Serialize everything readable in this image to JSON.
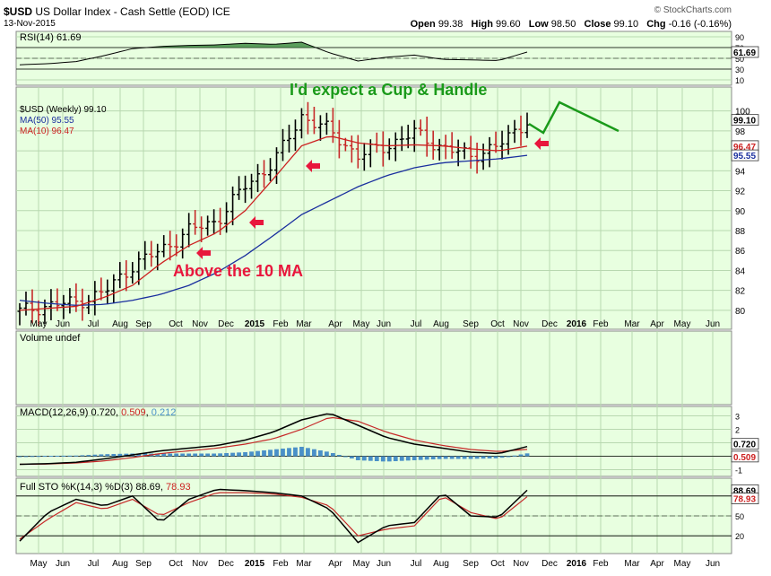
{
  "header": {
    "symbol": "$USD",
    "name": "US Dollar Index - Cash Settle (EOD)",
    "exchange": "ICE",
    "date": "13-Nov-2015",
    "watermark": "© StockCharts.com",
    "open_label": "Open",
    "open": "99.38",
    "high_label": "High",
    "high": "99.60",
    "low_label": "Low",
    "low": "98.50",
    "close_label": "Close",
    "close": "99.10",
    "chg_label": "Chg",
    "chg": "-0.16 (-0.16%)"
  },
  "colors": {
    "panel_bg": "#e8ffe0",
    "ma50": "#1a2f9e",
    "ma10": "#cc2020",
    "annotation_red": "#e8163c",
    "annotation_green": "#1a9a1a",
    "down_bar": "#c62828",
    "up_bar": "#000000",
    "rsi_fill": "#2e7d32",
    "histogram": "#4a90c8"
  },
  "x_axis": {
    "labels": [
      "May",
      "Jun",
      "Jul",
      "Aug",
      "Sep",
      "Oct",
      "Nov",
      "Dec",
      "2015",
      "Feb",
      "Mar",
      "Apr",
      "May",
      "Jun",
      "Jul",
      "Aug",
      "Sep",
      "Oct",
      "Nov",
      "Dec",
      "2016",
      "Feb",
      "Mar",
      "Apr",
      "May",
      "Jun"
    ]
  },
  "rsi": {
    "legend": "RSI(14) 61.69",
    "ticks": [
      "90",
      "70",
      "50",
      "30",
      "10"
    ],
    "value_tag": "61.69"
  },
  "price": {
    "legend_symbol": "$USD (Weekly) 99.10",
    "legend_ma50": "MA(50) 95.55",
    "legend_ma10": "MA(10) 96.47",
    "ticks": [
      "100",
      "98",
      "96",
      "94",
      "92",
      "90",
      "88",
      "86",
      "84",
      "82",
      "80"
    ],
    "tag_close": "99.10",
    "tag_ma10": "96.47",
    "tag_ma50": "95.55",
    "annotation_cup": "I'd expect a Cup & Handle",
    "annotation_ma": "Above the 10 MA"
  },
  "volume": {
    "legend": "Volume undef"
  },
  "macd": {
    "legend_prefix": "MACD(12,26,9)",
    "macd_value": "0.720",
    "signal_value": "0.509",
    "hist_value": "0.212",
    "ticks": [
      "3",
      "2",
      "1",
      "0",
      "-1"
    ],
    "tag_macd": "0.720",
    "tag_signal": "0.509"
  },
  "sto": {
    "legend_prefix": "Full STO %K(14,3) %D(3)",
    "k_value": "88.69",
    "d_value": "78.93",
    "ticks": [
      "80",
      "50",
      "20"
    ],
    "tag_k": "88.69",
    "tag_d": "78.93"
  },
  "chart_data": [
    {
      "type": "line",
      "title": "RSI(14)",
      "x": [
        "2014-05",
        "2014-06",
        "2014-07",
        "2014-08",
        "2014-09",
        "2014-10",
        "2014-11",
        "2014-12",
        "2015-01",
        "2015-02",
        "2015-03",
        "2015-04",
        "2015-05",
        "2015-06",
        "2015-07",
        "2015-08",
        "2015-09",
        "2015-10",
        "2015-11"
      ],
      "series": [
        {
          "name": "RSI(14)",
          "values": [
            38,
            40,
            44,
            55,
            68,
            72,
            74,
            75,
            78,
            76,
            80,
            60,
            45,
            52,
            56,
            48,
            47,
            46,
            61.69
          ]
        }
      ],
      "ylim": [
        0,
        100
      ]
    },
    {
      "type": "bar",
      "title": "$USD (Weekly)",
      "x": [
        "2014-05",
        "2014-06",
        "2014-07",
        "2014-08",
        "2014-09",
        "2014-10",
        "2014-11",
        "2014-12",
        "2015-01",
        "2015-02",
        "2015-03",
        "2015-04",
        "2015-05",
        "2015-06",
        "2015-07",
        "2015-08",
        "2015-09",
        "2015-10",
        "2015-11"
      ],
      "series": [
        {
          "name": "$USD",
          "values": [
            79.9,
            80.5,
            80.8,
            81.8,
            84.5,
            86.0,
            88.0,
            89.0,
            92.5,
            94.8,
            99.5,
            98.0,
            95.5,
            96.5,
            97.8,
            96.3,
            95.5,
            96.5,
            99.1
          ]
        },
        {
          "name": "MA(50)",
          "values": [
            81.0,
            80.7,
            80.5,
            80.6,
            81.0,
            81.6,
            82.5,
            83.8,
            85.5,
            87.5,
            89.6,
            91.0,
            92.4,
            93.5,
            94.3,
            94.8,
            95.0,
            95.2,
            95.55
          ]
        },
        {
          "name": "MA(10)",
          "values": [
            80.0,
            80.2,
            80.4,
            81.3,
            82.5,
            84.7,
            86.5,
            87.8,
            90.0,
            93.2,
            96.5,
            97.5,
            96.8,
            96.5,
            96.6,
            96.5,
            96.2,
            96.0,
            96.47
          ]
        }
      ],
      "ylim": [
        79,
        101
      ]
    },
    {
      "type": "line",
      "title": "MACD(12,26,9)",
      "x": [
        "2014-05",
        "2014-06",
        "2014-07",
        "2014-08",
        "2014-09",
        "2014-10",
        "2014-11",
        "2014-12",
        "2015-01",
        "2015-02",
        "2015-03",
        "2015-04",
        "2015-05",
        "2015-06",
        "2015-07",
        "2015-08",
        "2015-09",
        "2015-10",
        "2015-11"
      ],
      "series": [
        {
          "name": "MACD",
          "values": [
            -0.6,
            -0.55,
            -0.45,
            -0.2,
            0.1,
            0.4,
            0.6,
            0.8,
            1.2,
            1.8,
            2.7,
            3.2,
            2.3,
            1.4,
            0.9,
            0.6,
            0.3,
            0.2,
            0.72
          ]
        },
        {
          "name": "Signal",
          "values": [
            -0.6,
            -0.58,
            -0.5,
            -0.35,
            -0.1,
            0.2,
            0.4,
            0.6,
            0.9,
            1.3,
            2.0,
            2.9,
            2.6,
            1.8,
            1.2,
            0.8,
            0.5,
            0.35,
            0.509
          ]
        },
        {
          "name": "Histogram",
          "values": [
            0,
            0.03,
            0.05,
            0.15,
            0.2,
            0.2,
            0.2,
            0.2,
            0.3,
            0.5,
            0.7,
            0.3,
            -0.3,
            -0.4,
            -0.3,
            -0.2,
            -0.2,
            -0.15,
            0.212
          ]
        }
      ],
      "ylim": [
        -1.5,
        3.5
      ]
    },
    {
      "type": "line",
      "title": "Full STO %K(14,3) %D(3)",
      "x": [
        "2014-05",
        "2014-06",
        "2014-07",
        "2014-08",
        "2014-09",
        "2014-10",
        "2014-11",
        "2014-12",
        "2015-01",
        "2015-02",
        "2015-03",
        "2015-04",
        "2015-05",
        "2015-06",
        "2015-07",
        "2015-08",
        "2015-09",
        "2015-10",
        "2015-11"
      ],
      "series": [
        {
          "name": "%K",
          "values": [
            12,
            55,
            75,
            65,
            80,
            40,
            75,
            90,
            88,
            85,
            80,
            60,
            10,
            35,
            40,
            85,
            50,
            48,
            88.69
          ]
        },
        {
          "name": "%D",
          "values": [
            15,
            45,
            70,
            60,
            75,
            50,
            70,
            85,
            85,
            83,
            78,
            65,
            20,
            30,
            35,
            80,
            55,
            45,
            78.93
          ]
        }
      ],
      "ylim": [
        0,
        100
      ]
    }
  ]
}
